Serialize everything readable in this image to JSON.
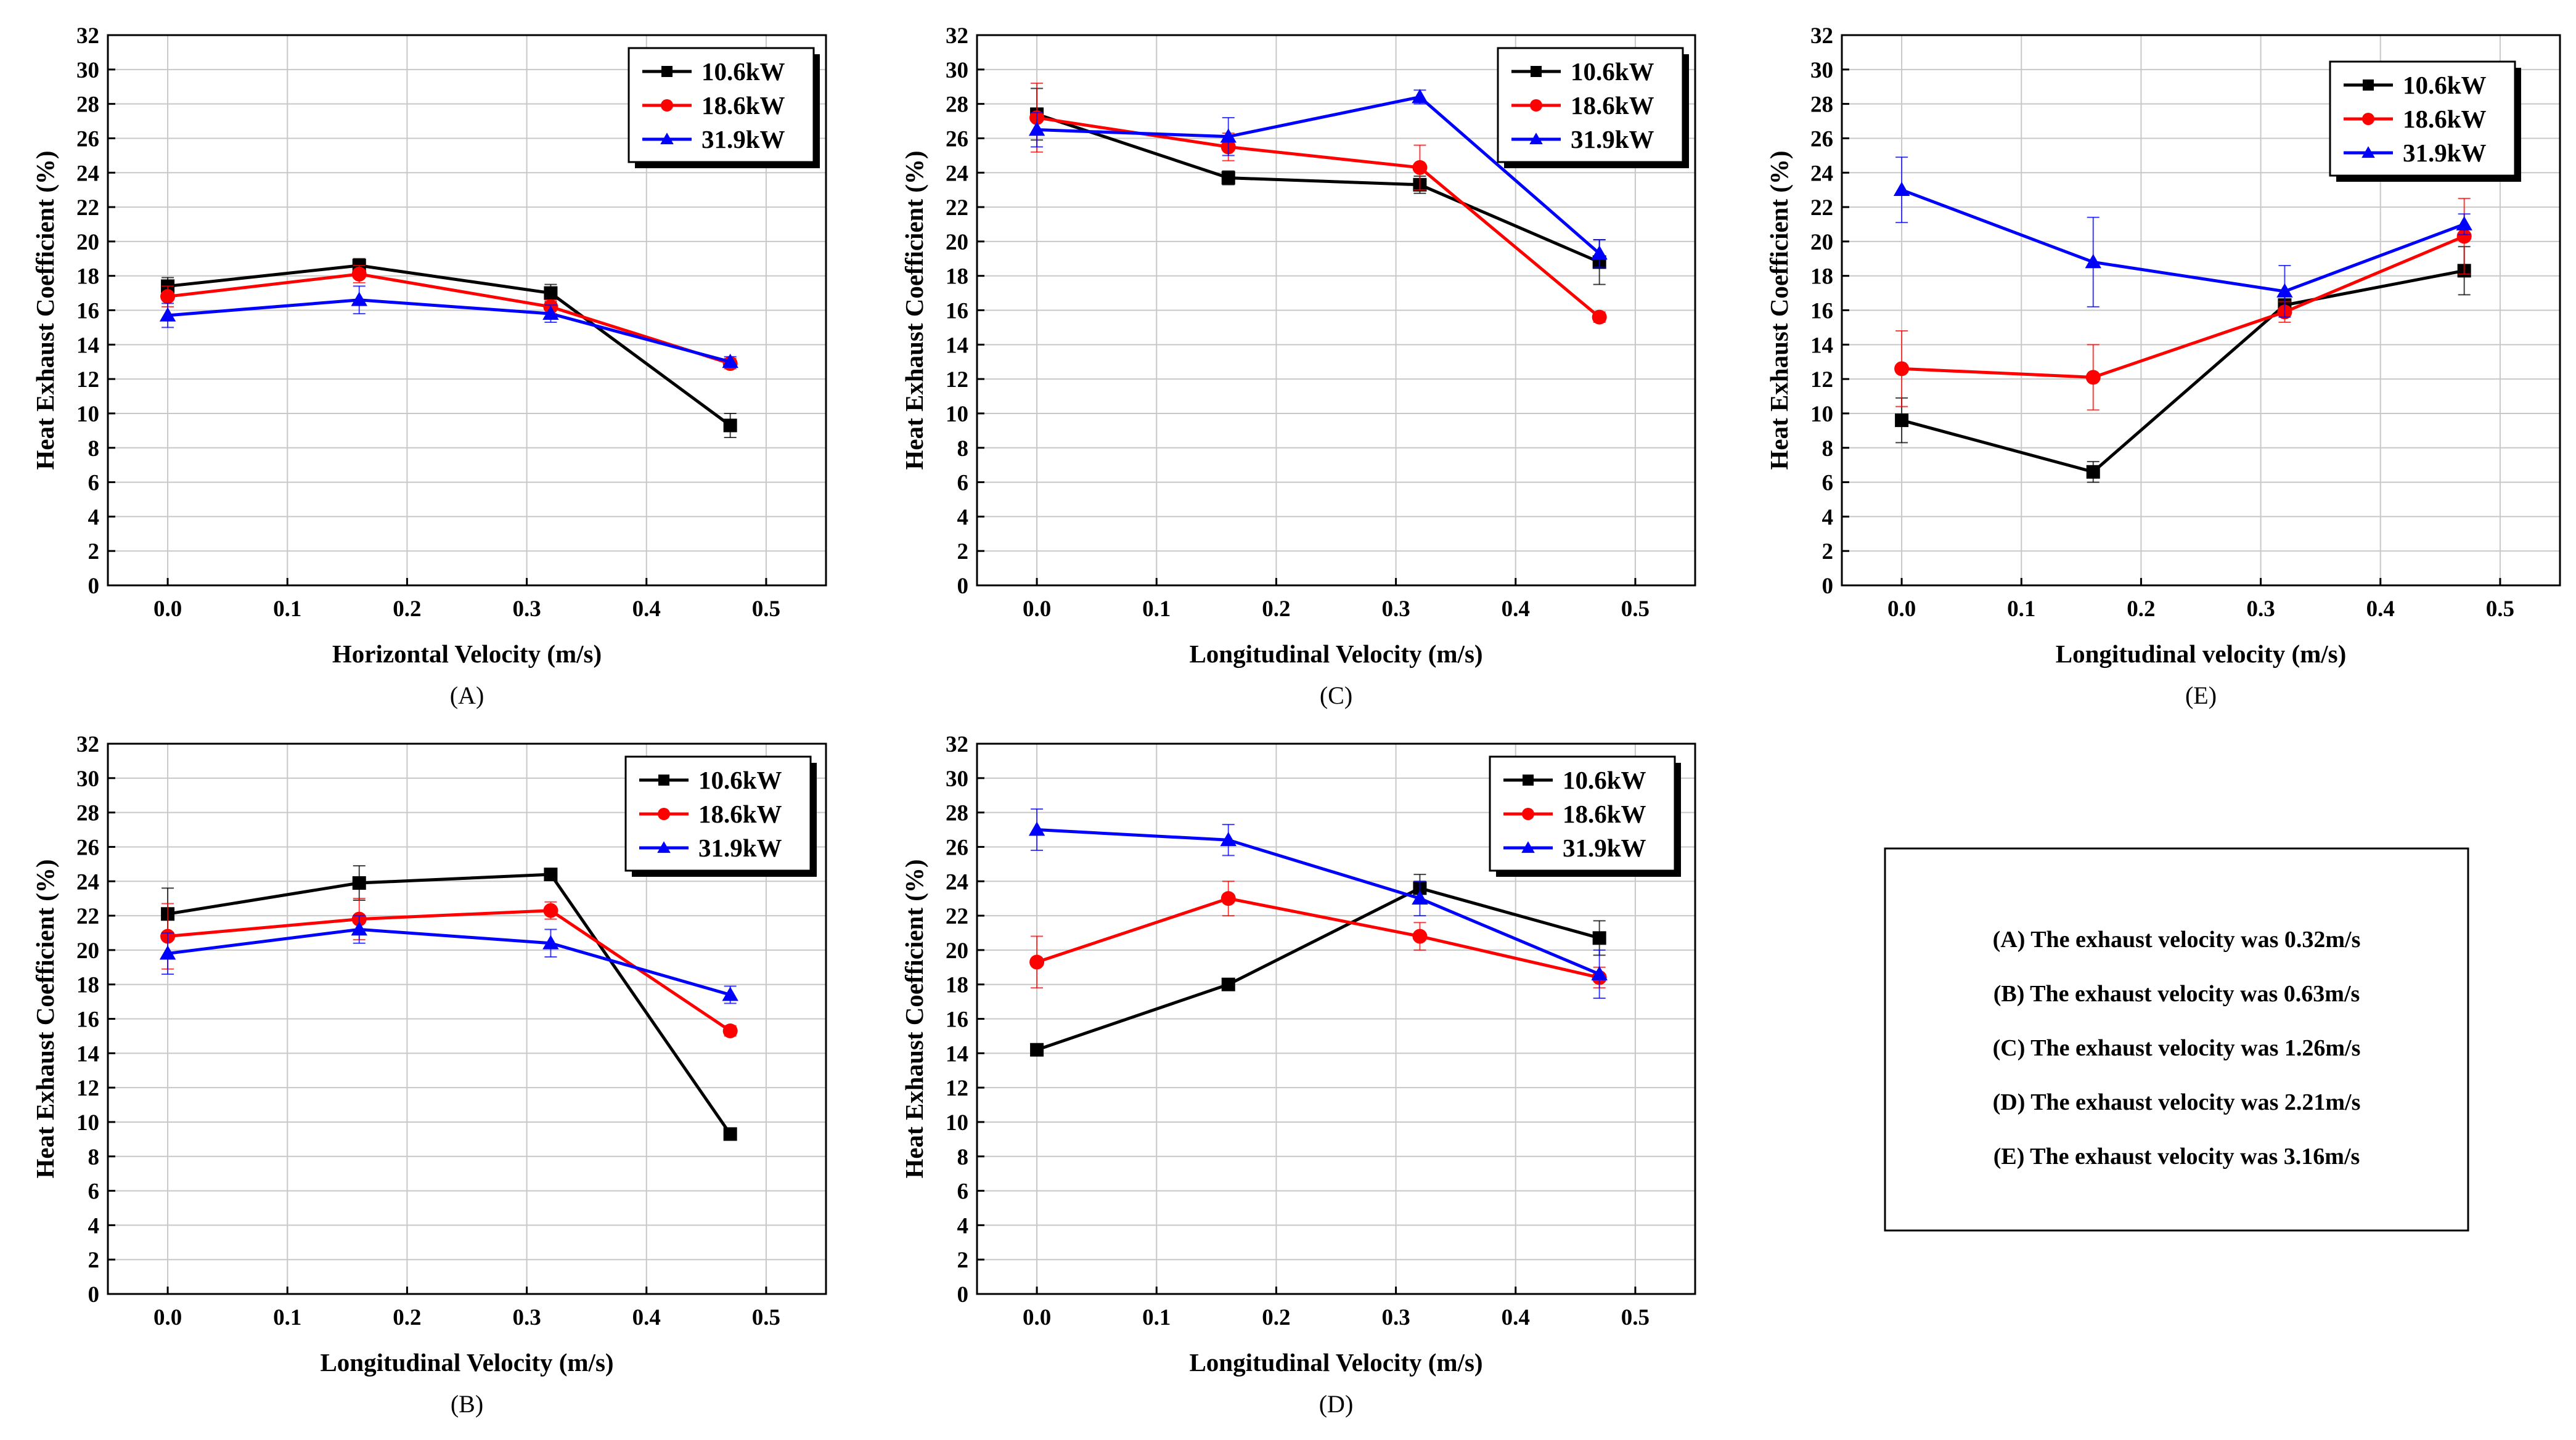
{
  "chart_data": [
    {
      "panel": "(A)",
      "type": "line",
      "xlabel": "Horizontal Velocity (m/s)",
      "ylabel": "Heat Exhaust Coefficient (%)",
      "xlim": [
        -0.05,
        0.55
      ],
      "ylim": [
        0,
        32
      ],
      "xticks": [
        "0.0",
        "0.1",
        "0.2",
        "0.3",
        "0.4",
        "0.5"
      ],
      "yticks": [
        "0",
        "2",
        "4",
        "6",
        "8",
        "10",
        "12",
        "14",
        "16",
        "18",
        "20",
        "22",
        "24",
        "26",
        "28",
        "30",
        "32"
      ],
      "grid": true,
      "legend": "top-right",
      "x": [
        0,
        0.16,
        0.32,
        0.47
      ],
      "series": [
        {
          "name": "10.6kW",
          "color": "#000000",
          "marker": "square",
          "values": [
            17.4,
            18.6,
            17.0,
            9.3
          ],
          "errors": [
            0.5,
            0.4,
            0.5,
            0.7
          ]
        },
        {
          "name": "18.6kW",
          "color": "#ff0000",
          "marker": "circle",
          "values": [
            16.8,
            18.1,
            16.2,
            12.9
          ],
          "errors": [
            0.6,
            0.5,
            0.4,
            0.3
          ]
        },
        {
          "name": "31.9kW",
          "color": "#0000ff",
          "marker": "triangle",
          "values": [
            15.7,
            16.6,
            15.8,
            13.0
          ],
          "errors": [
            0.7,
            0.8,
            0.5,
            0.3
          ]
        }
      ]
    },
    {
      "panel": "(C)",
      "type": "line",
      "xlabel": "Longitudinal Velocity (m/s)",
      "ylabel": "Heat Exhaust Coefficient (%)",
      "xlim": [
        -0.05,
        0.55
      ],
      "ylim": [
        0,
        32
      ],
      "xticks": [
        "0.0",
        "0.1",
        "0.2",
        "0.3",
        "0.4",
        "0.5"
      ],
      "yticks": [
        "0",
        "2",
        "4",
        "6",
        "8",
        "10",
        "12",
        "14",
        "16",
        "18",
        "20",
        "22",
        "24",
        "26",
        "28",
        "30",
        "32"
      ],
      "grid": true,
      "legend": "top-right",
      "x": [
        0,
        0.16,
        0.32,
        0.47
      ],
      "series": [
        {
          "name": "10.6kW",
          "color": "#000000",
          "marker": "square",
          "values": [
            27.4,
            23.7,
            23.3,
            18.8
          ],
          "errors": [
            1.5,
            0.4,
            0.5,
            1.3
          ]
        },
        {
          "name": "18.6kW",
          "color": "#ff0000",
          "marker": "circle",
          "values": [
            27.2,
            25.5,
            24.3,
            15.6
          ],
          "errors": [
            2.0,
            0.8,
            1.3,
            0.3
          ]
        },
        {
          "name": "31.9kW",
          "color": "#0000ff",
          "marker": "triangle",
          "values": [
            26.5,
            26.1,
            28.4,
            19.3
          ],
          "errors": [
            1.0,
            1.1,
            0.4,
            0.8
          ]
        }
      ]
    },
    {
      "panel": "(E)",
      "type": "line",
      "xlabel": "Longitudinal velocity (m/s)",
      "ylabel": "Heat Exhaust Coefficient (%)",
      "xlim": [
        -0.05,
        0.55
      ],
      "ylim": [
        0,
        32
      ],
      "xticks": [
        "0.0",
        "0.1",
        "0.2",
        "0.3",
        "0.4",
        "0.5"
      ],
      "yticks": [
        "0",
        "2",
        "4",
        "6",
        "8",
        "10",
        "12",
        "14",
        "16",
        "18",
        "20",
        "22",
        "24",
        "26",
        "28",
        "30",
        "32"
      ],
      "grid": true,
      "legend": "top-right",
      "x": [
        0,
        0.16,
        0.32,
        0.47
      ],
      "series": [
        {
          "name": "10.6kW",
          "color": "#000000",
          "marker": "square",
          "values": [
            9.6,
            6.6,
            16.3,
            18.3
          ],
          "errors": [
            1.3,
            0.6,
            0.5,
            1.4
          ]
        },
        {
          "name": "18.6kW",
          "color": "#ff0000",
          "marker": "circle",
          "values": [
            12.6,
            12.1,
            15.9,
            20.3
          ],
          "errors": [
            2.2,
            1.9,
            0.6,
            2.2
          ]
        },
        {
          "name": "31.9kW",
          "color": "#0000ff",
          "marker": "triangle",
          "values": [
            23.0,
            18.8,
            17.1,
            21.0
          ],
          "errors": [
            1.9,
            2.6,
            1.5,
            0.6
          ]
        }
      ]
    },
    {
      "panel": "(B)",
      "type": "line",
      "xlabel": "Longitudinal Velocity (m/s)",
      "ylabel": "Heat Exhaust Coefficient (%)",
      "xlim": [
        -0.05,
        0.55
      ],
      "ylim": [
        0,
        32
      ],
      "xticks": [
        "0.0",
        "0.1",
        "0.2",
        "0.3",
        "0.4",
        "0.5"
      ],
      "yticks": [
        "0",
        "2",
        "4",
        "6",
        "8",
        "10",
        "12",
        "14",
        "16",
        "18",
        "20",
        "22",
        "24",
        "26",
        "28",
        "30",
        "32"
      ],
      "grid": true,
      "legend": "top-right",
      "x": [
        0,
        0.16,
        0.32,
        0.47
      ],
      "series": [
        {
          "name": "10.6kW",
          "color": "#000000",
          "marker": "square",
          "values": [
            22.1,
            23.9,
            24.4,
            9.3
          ],
          "errors": [
            1.5,
            1.0,
            0.3,
            0.2
          ]
        },
        {
          "name": "18.6kW",
          "color": "#ff0000",
          "marker": "circle",
          "values": [
            20.8,
            21.8,
            22.3,
            15.3
          ],
          "errors": [
            1.9,
            1.2,
            0.5,
            0.3
          ]
        },
        {
          "name": "31.9kW",
          "color": "#0000ff",
          "marker": "triangle",
          "values": [
            19.8,
            21.2,
            20.4,
            17.4
          ],
          "errors": [
            1.2,
            0.8,
            0.8,
            0.5
          ]
        }
      ]
    },
    {
      "panel": "(D)",
      "type": "line",
      "xlabel": "Longitudinal Velocity (m/s)",
      "ylabel": "Heat Exhaust Coefficient (%)",
      "xlim": [
        -0.05,
        0.55
      ],
      "ylim": [
        0,
        32
      ],
      "xticks": [
        "0.0",
        "0.1",
        "0.2",
        "0.3",
        "0.4",
        "0.5"
      ],
      "yticks": [
        "0",
        "2",
        "4",
        "6",
        "8",
        "10",
        "12",
        "14",
        "16",
        "18",
        "20",
        "22",
        "24",
        "26",
        "28",
        "30",
        "32"
      ],
      "grid": true,
      "legend": "top-right",
      "x": [
        0,
        0.16,
        0.32,
        0.47
      ],
      "series": [
        {
          "name": "10.6kW",
          "color": "#000000",
          "marker": "square",
          "values": [
            14.2,
            18.0,
            23.6,
            20.7
          ],
          "errors": [
            0.3,
            0.3,
            0.8,
            1.0
          ]
        },
        {
          "name": "18.6kW",
          "color": "#ff0000",
          "marker": "circle",
          "values": [
            19.3,
            23.0,
            20.8,
            18.4
          ],
          "errors": [
            1.5,
            1.0,
            0.8,
            0.6
          ]
        },
        {
          "name": "31.9kW",
          "color": "#0000ff",
          "marker": "triangle",
          "values": [
            27.0,
            26.4,
            23.0,
            18.6
          ],
          "errors": [
            1.2,
            0.9,
            1.0,
            1.4
          ]
        }
      ]
    }
  ],
  "notes": [
    "(A) The exhaust velocity was 0.32m/s",
    "(B) The exhaust velocity was 0.63m/s",
    "(C) The exhaust velocity was 1.26m/s",
    "(D) The exhaust velocity was 2.21m/s",
    "(E) The exhaust velocity was 3.16m/s"
  ]
}
